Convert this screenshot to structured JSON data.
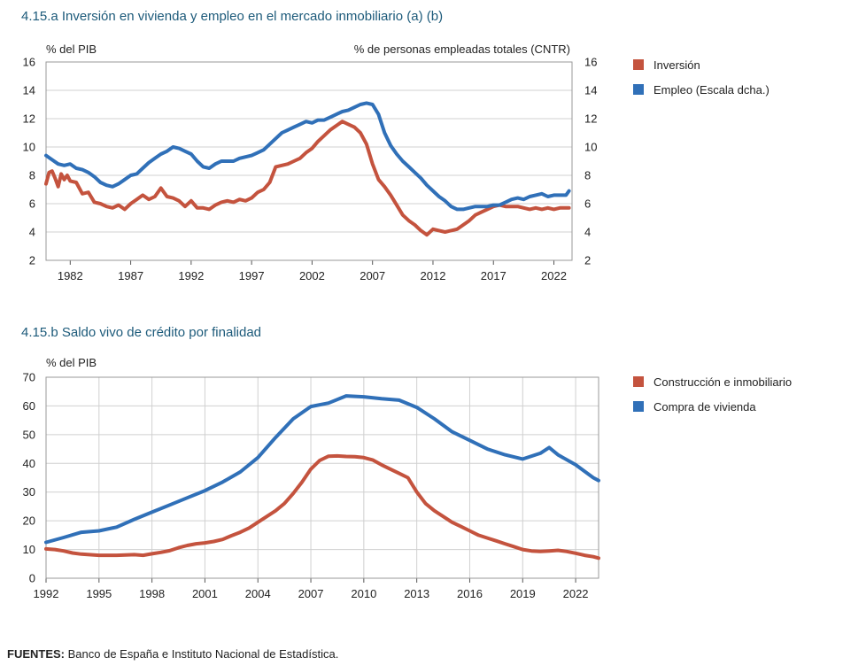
{
  "sources": {
    "label": "FUENTES:",
    "text": "Banco de España e Instituto Nacional de Estadística."
  },
  "chart_data": [
    {
      "id": "a",
      "type": "line",
      "title": "4.15.a  Inversión en vivienda y empleo en el mercado inmobiliario (a) (b)",
      "ylabel_left": "% del PIB",
      "ylabel_right": "% de personas empleadas totales (CNTR)",
      "xlim": [
        1980,
        2023.5
      ],
      "ylim": [
        2,
        16
      ],
      "y2lim": [
        2,
        16
      ],
      "x_ticks": [
        1982,
        1987,
        1992,
        1997,
        2002,
        2007,
        2012,
        2017,
        2022
      ],
      "y_ticks": [
        2,
        4,
        6,
        8,
        10,
        12,
        14,
        16
      ],
      "y2_ticks": [
        2,
        4,
        6,
        8,
        10,
        12,
        14,
        16
      ],
      "grid": true,
      "legend_position": "right",
      "series": [
        {
          "name": "Inversión",
          "color": "#c4533e",
          "axis": "left",
          "x": [
            1980,
            1980.25,
            1980.5,
            1980.75,
            1981,
            1981.25,
            1981.5,
            1981.75,
            1982,
            1982.5,
            1983,
            1983.5,
            1984,
            1984.5,
            1985,
            1985.5,
            1986,
            1986.5,
            1987,
            1987.5,
            1988,
            1988.5,
            1989,
            1989.5,
            1990,
            1990.5,
            1991,
            1991.5,
            1992,
            1992.5,
            1993,
            1993.5,
            1994,
            1994.5,
            1995,
            1995.5,
            1996,
            1996.5,
            1997,
            1997.5,
            1998,
            1998.5,
            1999,
            1999.5,
            2000,
            2000.5,
            2001,
            2001.5,
            2002,
            2002.5,
            2003,
            2003.5,
            2004,
            2004.5,
            2005,
            2005.5,
            2006,
            2006.5,
            2007,
            2007.5,
            2008,
            2008.5,
            2009,
            2009.5,
            2010,
            2010.5,
            2011,
            2011.5,
            2012,
            2012.5,
            2013,
            2013.5,
            2014,
            2014.5,
            2015,
            2015.5,
            2016,
            2016.5,
            2017,
            2017.5,
            2018,
            2018.5,
            2019,
            2019.5,
            2020,
            2020.5,
            2021,
            2021.5,
            2022,
            2022.5,
            2023,
            2023.25
          ],
          "values": [
            7.4,
            8.2,
            8.3,
            7.8,
            7.2,
            8.1,
            7.7,
            8.0,
            7.6,
            7.5,
            6.7,
            6.8,
            6.1,
            6.0,
            5.8,
            5.7,
            5.9,
            5.6,
            6.0,
            6.3,
            6.6,
            6.3,
            6.5,
            7.1,
            6.5,
            6.4,
            6.2,
            5.8,
            6.2,
            5.7,
            5.7,
            5.6,
            5.9,
            6.1,
            6.2,
            6.1,
            6.3,
            6.2,
            6.4,
            6.8,
            7.0,
            7.5,
            8.6,
            8.7,
            8.8,
            9.0,
            9.2,
            9.6,
            9.9,
            10.4,
            10.8,
            11.2,
            11.5,
            11.8,
            11.6,
            11.4,
            11.0,
            10.2,
            8.8,
            7.7,
            7.2,
            6.6,
            5.9,
            5.2,
            4.8,
            4.5,
            4.1,
            3.8,
            4.2,
            4.1,
            4.0,
            4.1,
            4.2,
            4.5,
            4.8,
            5.2,
            5.4,
            5.6,
            5.8,
            5.9,
            5.8,
            5.8,
            5.8,
            5.7,
            5.6,
            5.7,
            5.6,
            5.7,
            5.6,
            5.7,
            5.7,
            5.7
          ],
          "note_x_alignment": "values parallel to x"
        },
        {
          "name": "Empleo (Escala dcha.)",
          "color": "#3070b8",
          "axis": "right",
          "x": [
            1980,
            1980.5,
            1981,
            1981.5,
            1982,
            1982.5,
            1983,
            1983.5,
            1984,
            1984.5,
            1985,
            1985.5,
            1986,
            1986.5,
            1987,
            1987.5,
            1988,
            1988.5,
            1989,
            1989.5,
            1990,
            1990.5,
            1991,
            1991.5,
            1992,
            1992.5,
            1993,
            1993.5,
            1994,
            1994.5,
            1995,
            1995.5,
            1996,
            1996.5,
            1997,
            1997.5,
            1998,
            1998.5,
            1999,
            1999.5,
            2000,
            2000.5,
            2001,
            2001.5,
            2002,
            2002.5,
            2003,
            2003.5,
            2004,
            2004.5,
            2005,
            2005.5,
            2006,
            2006.5,
            2007,
            2007.5,
            2008,
            2008.5,
            2009,
            2009.5,
            2010,
            2010.5,
            2011,
            2011.5,
            2012,
            2012.5,
            2013,
            2013.5,
            2014,
            2014.5,
            2015,
            2015.5,
            2016,
            2016.5,
            2017,
            2017.5,
            2018,
            2018.5,
            2019,
            2019.5,
            2020,
            2020.5,
            2021,
            2021.5,
            2022,
            2022.5,
            2023,
            2023.25
          ],
          "values": [
            9.4,
            9.1,
            8.8,
            8.7,
            8.8,
            8.5,
            8.4,
            8.2,
            7.9,
            7.5,
            7.3,
            7.2,
            7.4,
            7.7,
            8.0,
            8.1,
            8.5,
            8.9,
            9.2,
            9.5,
            9.7,
            10.0,
            9.9,
            9.7,
            9.5,
            9.0,
            8.6,
            8.5,
            8.8,
            9.0,
            9.0,
            9.0,
            9.2,
            9.3,
            9.4,
            9.6,
            9.8,
            10.2,
            10.6,
            11.0,
            11.2,
            11.4,
            11.6,
            11.8,
            11.7,
            11.9,
            11.9,
            12.1,
            12.3,
            12.5,
            12.6,
            12.8,
            13.0,
            13.1,
            13.0,
            12.3,
            11.0,
            10.1,
            9.5,
            9.0,
            8.6,
            8.2,
            7.8,
            7.3,
            6.9,
            6.5,
            6.2,
            5.8,
            5.6,
            5.6,
            5.7,
            5.8,
            5.8,
            5.8,
            5.9,
            5.9,
            6.1,
            6.3,
            6.4,
            6.3,
            6.5,
            6.6,
            6.7,
            6.5,
            6.6,
            6.6,
            6.6,
            6.9
          ]
        }
      ]
    },
    {
      "id": "b",
      "type": "line",
      "title": "4.15.b  Saldo vivo de crédito por finalidad",
      "ylabel": "% del PIB",
      "xlim": [
        1992,
        2023.3
      ],
      "ylim": [
        0,
        70
      ],
      "x_ticks": [
        1992,
        1995,
        1998,
        2001,
        2004,
        2007,
        2010,
        2013,
        2016,
        2019,
        2022
      ],
      "y_ticks": [
        0,
        10,
        20,
        30,
        40,
        50,
        60,
        70
      ],
      "grid": true,
      "legend_position": "right",
      "series": [
        {
          "name": "Construcción e inmobiliario",
          "color": "#c4533e",
          "x": [
            1992,
            1992.5,
            1993,
            1993.5,
            1994,
            1995,
            1996,
            1997,
            1997.5,
            1998,
            1998.5,
            1999,
            1999.5,
            2000,
            2000.5,
            2001,
            2001.5,
            2002,
            2002.5,
            2003,
            2003.5,
            2004,
            2004.5,
            2005,
            2005.5,
            2006,
            2006.5,
            2007,
            2007.5,
            2008,
            2008.5,
            2009,
            2009.5,
            2010,
            2010.5,
            2011,
            2011.5,
            2012,
            2012.5,
            2013,
            2013.5,
            2014,
            2014.5,
            2015,
            2015.5,
            2016,
            2016.5,
            2017,
            2017.5,
            2018,
            2018.5,
            2019,
            2019.5,
            2020,
            2020.5,
            2021,
            2021.5,
            2022,
            2022.5,
            2023,
            2023.3
          ],
          "values": [
            10.2,
            10.0,
            9.5,
            8.8,
            8.4,
            8.0,
            8.0,
            8.2,
            8.0,
            8.5,
            9.0,
            9.6,
            10.6,
            11.4,
            12.0,
            12.3,
            12.8,
            13.5,
            14.8,
            16.0,
            17.5,
            19.5,
            21.5,
            23.5,
            26.0,
            29.5,
            33.5,
            38.0,
            41.0,
            42.5,
            42.6,
            42.4,
            42.3,
            42.0,
            41.2,
            39.5,
            38.0,
            36.5,
            35.0,
            30.0,
            26.0,
            23.5,
            21.5,
            19.5,
            18.0,
            16.5,
            15.0,
            14.0,
            13.0,
            12.0,
            11.0,
            10.0,
            9.5,
            9.3,
            9.5,
            9.7,
            9.3,
            8.7,
            8.0,
            7.5,
            7.0
          ]
        },
        {
          "name": "Compra de vivienda",
          "color": "#3070b8",
          "x": [
            1992,
            1993,
            1994,
            1995,
            1996,
            1997,
            1998,
            1999,
            2000,
            2001,
            2002,
            2003,
            2004,
            2005,
            2006,
            2007,
            2008,
            2009,
            2010,
            2011,
            2012,
            2013,
            2014,
            2015,
            2016,
            2017,
            2018,
            2019,
            2020,
            2020.5,
            2021,
            2022,
            2023,
            2023.3
          ],
          "values": [
            12.5,
            14.2,
            16.0,
            16.5,
            17.8,
            20.5,
            23.0,
            25.5,
            28.0,
            30.5,
            33.5,
            37.0,
            42.0,
            49.0,
            55.5,
            59.8,
            61.0,
            63.5,
            63.2,
            62.5,
            62.0,
            59.5,
            55.5,
            51.0,
            48.0,
            45.0,
            43.0,
            41.5,
            43.5,
            45.5,
            43.0,
            39.5,
            35.0,
            34.0
          ]
        }
      ]
    }
  ]
}
